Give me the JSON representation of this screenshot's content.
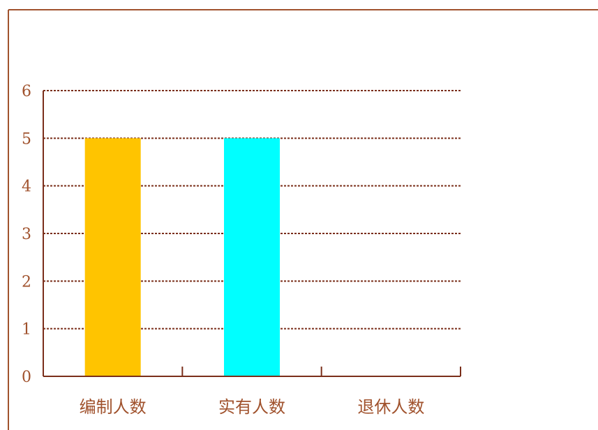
{
  "colors": {
    "frame": "#a0522d",
    "axis": "#7a2e1a",
    "grid": "#7a2e1a",
    "label": "#a0522d"
  },
  "chart_data": {
    "type": "bar",
    "categories": [
      "编制人数",
      "实有人数",
      "退休人数"
    ],
    "values": [
      5,
      5,
      0
    ],
    "colors": [
      "#ffc400",
      "#00ffff",
      "#ffffff"
    ],
    "title": "",
    "xlabel": "",
    "ylabel": "",
    "ylim": [
      0,
      6
    ],
    "yticks": [
      "0",
      "1",
      "2",
      "3",
      "4",
      "5",
      "6"
    ],
    "grid": true,
    "legend": "none"
  }
}
